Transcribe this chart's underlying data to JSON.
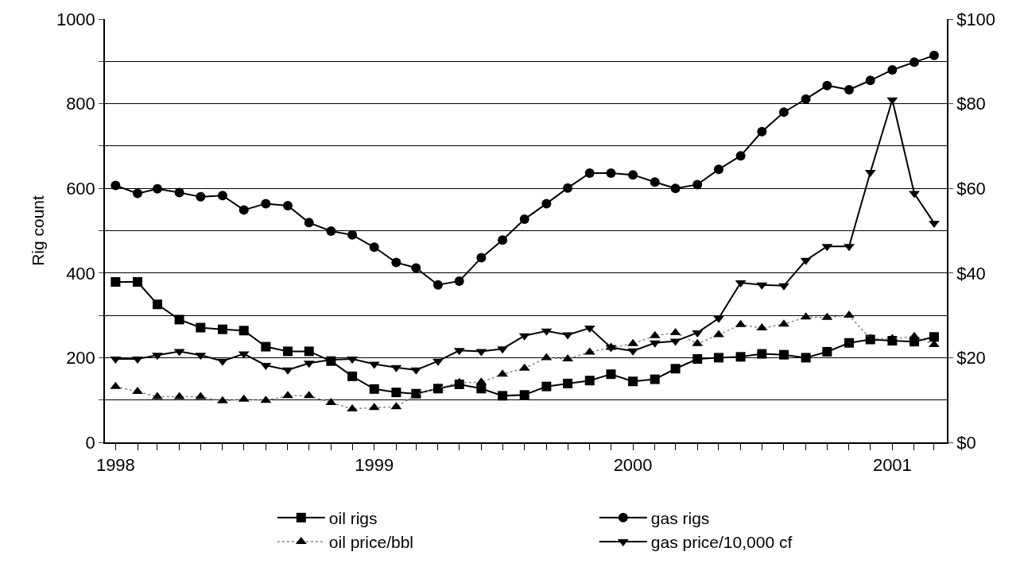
{
  "chart_data": {
    "type": "line",
    "ylabel": "Rig count",
    "x": [
      "1998-01",
      "1998-02",
      "1998-03",
      "1998-04",
      "1998-05",
      "1998-06",
      "1998-07",
      "1998-08",
      "1998-09",
      "1998-10",
      "1998-11",
      "1998-12",
      "1999-01",
      "1999-02",
      "1999-03",
      "1999-04",
      "1999-05",
      "1999-06",
      "1999-07",
      "1999-08",
      "1999-09",
      "1999-10",
      "1999-11",
      "1999-12",
      "2000-01",
      "2000-02",
      "2000-03",
      "2000-04",
      "2000-05",
      "2000-06",
      "2000-07",
      "2000-08",
      "2000-09",
      "2000-10",
      "2000-11",
      "2000-12",
      "2001-01",
      "2001-02",
      "2001-03"
    ],
    "series": [
      {
        "name": "oil rigs",
        "color": "#000000",
        "marker": "square",
        "line_style": "solid",
        "values": [
          379,
          379,
          326,
          290,
          271,
          267,
          264,
          226,
          215,
          215,
          192,
          156,
          126,
          118,
          115,
          127,
          137,
          127,
          110,
          112,
          132,
          139,
          146,
          161,
          144,
          149,
          174,
          197,
          200,
          202,
          209,
          207,
          200,
          214,
          235,
          243,
          240,
          238,
          249
        ]
      },
      {
        "name": "gas rigs",
        "color": "#000000",
        "marker": "circle",
        "line_style": "solid",
        "values": [
          607,
          588,
          599,
          590,
          580,
          583,
          549,
          564,
          559,
          519,
          499,
          490,
          461,
          425,
          412,
          372,
          381,
          436,
          478,
          527,
          564,
          601,
          636,
          636,
          632,
          615,
          600,
          609,
          645,
          677,
          734,
          780,
          811,
          843,
          833,
          855,
          880,
          898,
          914
        ]
      },
      {
        "name": "oil price/bbl",
        "color": "#000000",
        "marker": "triangle",
        "line_style": "dotted",
        "axis": "y2",
        "values": [
          13.2,
          12.0,
          10.8,
          10.8,
          10.8,
          9.8,
          10.2,
          9.9,
          11.0,
          11.0,
          9.4,
          7.9,
          8.2,
          8.4,
          11.2,
          12.8,
          14.1,
          14.2,
          16.1,
          17.5,
          20.0,
          19.7,
          21.3,
          22.4,
          23.3,
          25.2,
          25.9,
          23.3,
          25.4,
          27.8,
          27.0,
          27.9,
          29.6,
          29.5,
          30.0,
          24.5,
          24.5,
          25.0,
          23.1
        ]
      },
      {
        "name": "gas price/10,000 cf",
        "color": "#000000",
        "marker": "triangle-down",
        "line_style": "solid",
        "axis": "y2",
        "values": [
          19.7,
          19.7,
          20.6,
          21.5,
          20.6,
          19.2,
          20.9,
          18.2,
          17.1,
          18.7,
          19.5,
          19.7,
          18.5,
          17.7,
          17.1,
          19.2,
          21.7,
          21.5,
          22.1,
          25.2,
          26.3,
          25.4,
          27.0,
          22.4,
          21.6,
          23.5,
          23.9,
          25.9,
          29.3,
          37.7,
          37.2,
          37.0,
          43.0,
          46.3,
          46.3,
          63.8,
          80.9,
          58.8,
          51.8
        ]
      }
    ],
    "xlim": [
      "1997-12-17",
      "2001-03-19"
    ],
    "xticks": [
      {
        "value": "1998-01-01",
        "label": "1998"
      },
      {
        "value": "1999-01-01",
        "label": "1999"
      },
      {
        "value": "2000-01-01",
        "label": "2000"
      },
      {
        "value": "2001-01-01",
        "label": "2001"
      }
    ],
    "ylim": [
      0,
      1000
    ],
    "yticks": [
      0,
      {
        "value": 100,
        "label": null
      },
      200,
      {
        "value": 300,
        "label": null
      },
      400,
      {
        "value": 500,
        "label": null
      },
      600,
      {
        "value": 700,
        "label": null
      },
      800,
      {
        "value": 900,
        "label": null
      },
      1000
    ],
    "y2lim": [
      0,
      100
    ],
    "y2ticks": [
      {
        "value": 0,
        "label": "$0"
      },
      {
        "value": 20,
        "label": "$20"
      },
      {
        "value": 40,
        "label": "$40"
      },
      {
        "value": 60,
        "label": "$60"
      },
      {
        "value": 80,
        "label": "$80"
      },
      {
        "value": 100,
        "label": "$100"
      }
    ],
    "grid": "y",
    "legend": "bottom"
  }
}
